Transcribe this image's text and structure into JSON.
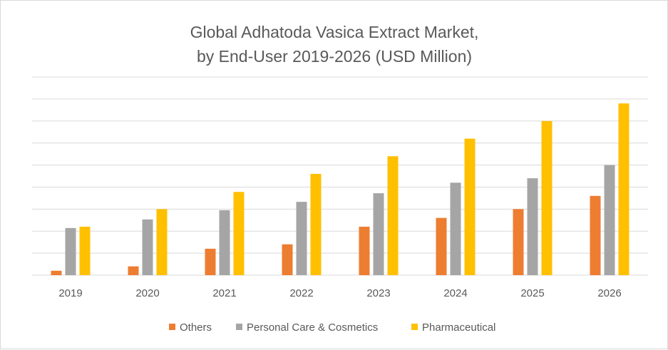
{
  "chart_data": {
    "type": "bar",
    "title_lines": [
      "Global Adhatoda Vasica Extract Market,",
      "by End-User 2019-2026 (USD Million)"
    ],
    "xlabel": "",
    "ylabel": "",
    "y_axis_labels_shown": false,
    "ylim": [
      0,
      9
    ],
    "grid": true,
    "legend_position": "bottom",
    "categories": [
      "2019",
      "2020",
      "2021",
      "2022",
      "2023",
      "2024",
      "2025",
      "2026"
    ],
    "series": [
      {
        "name": "Others",
        "color": "#ED7D31",
        "values": [
          0.2,
          0.4,
          1.2,
          1.4,
          2.2,
          2.6,
          3.0,
          3.6
        ]
      },
      {
        "name": "Personal Care & Cosmetics",
        "color": "#A5A5A5",
        "values": [
          2.14,
          2.53,
          2.95,
          3.33,
          3.72,
          4.2,
          4.4,
          5.0
        ]
      },
      {
        "name": "Pharmaceutical",
        "color": "#FFC000",
        "values": [
          2.2,
          3.0,
          3.78,
          4.6,
          5.4,
          6.2,
          7.0,
          7.8
        ]
      }
    ]
  }
}
